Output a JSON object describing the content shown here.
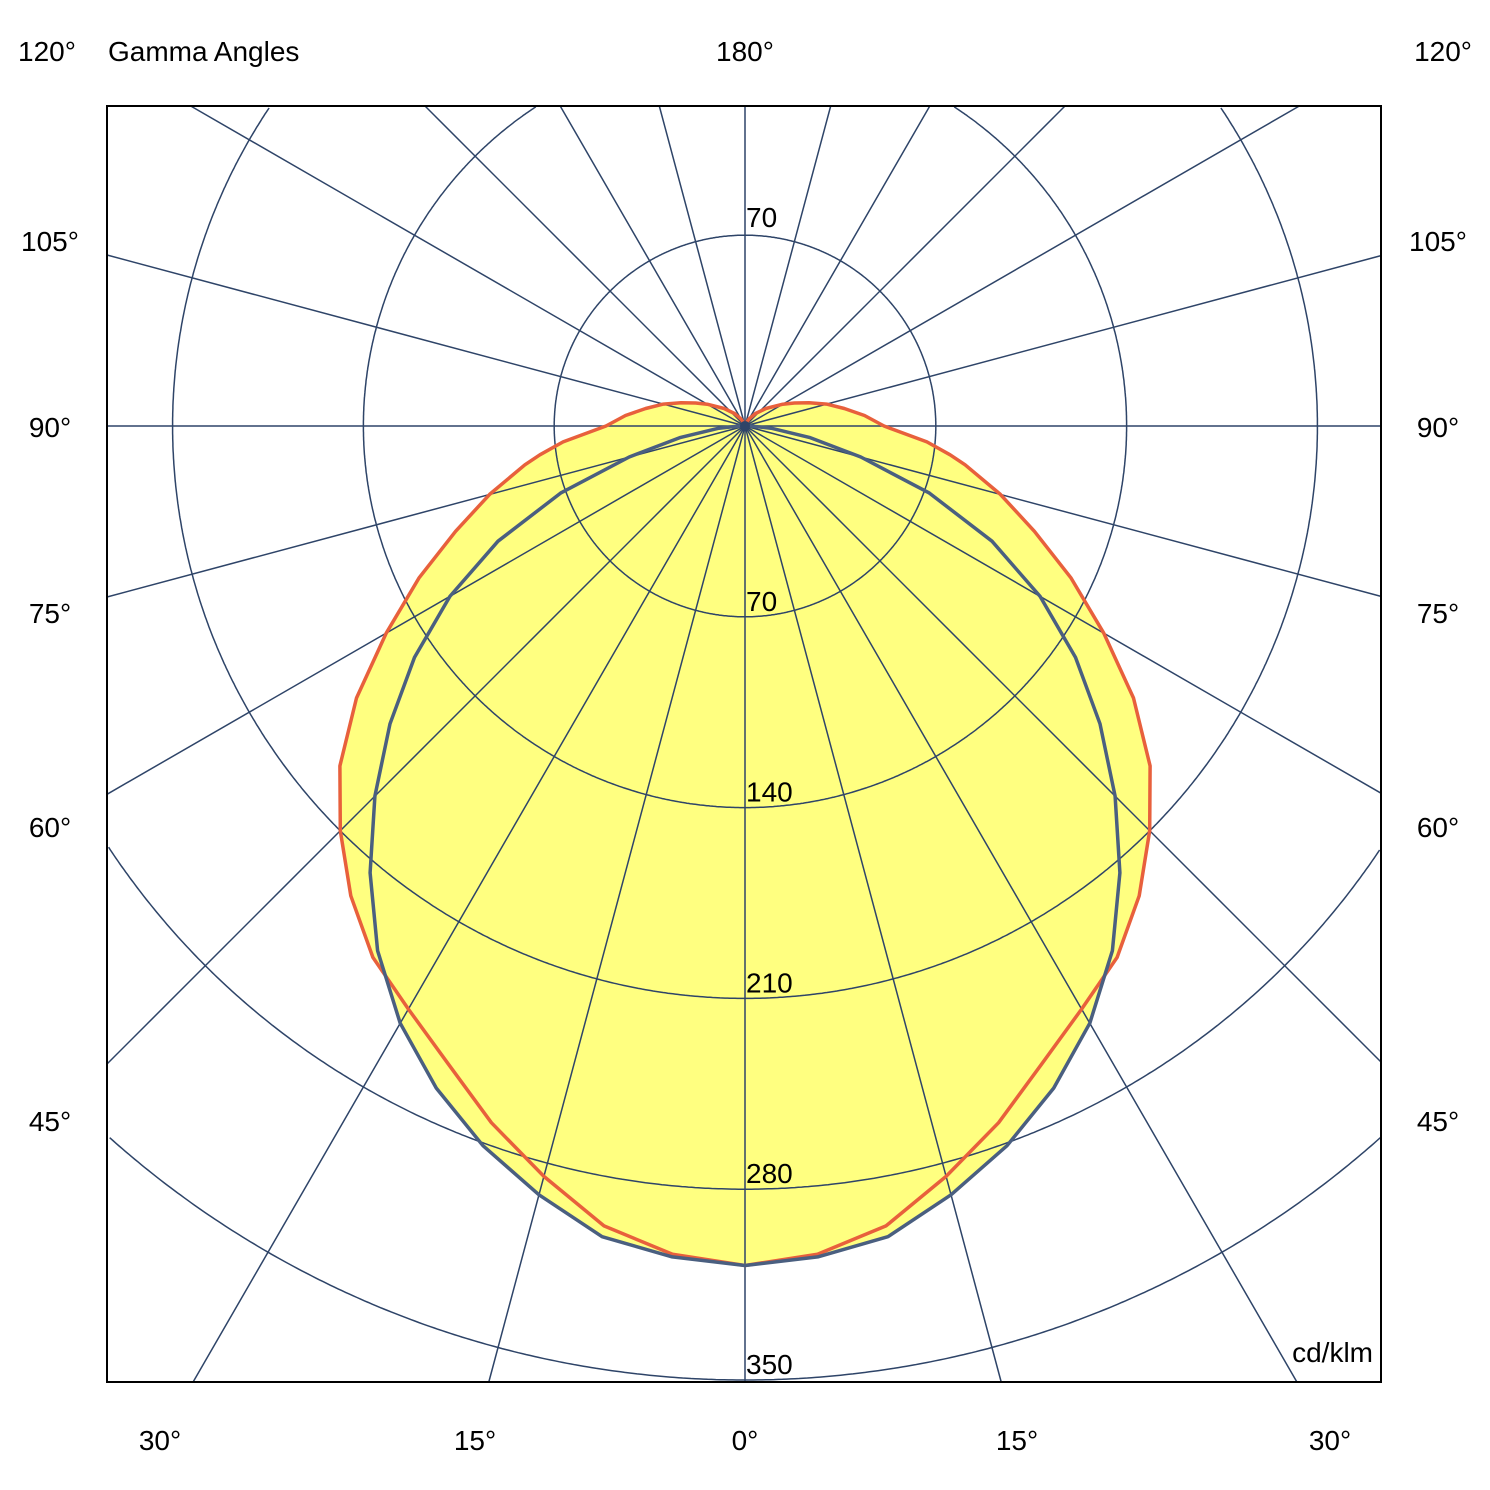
{
  "chart_data": {
    "type": "polar",
    "title": "Gamma Angles",
    "unit_label": "cd/klm",
    "radial_ticks": [
      70,
      140,
      210,
      280,
      350
    ],
    "radial_max": 350,
    "spoke_step_deg": 15,
    "grid": true,
    "top_angle_label": "180°",
    "corner_angle_label": "120°",
    "side_angle_labels": [
      "105°",
      "90°",
      "75°",
      "60°",
      "45°"
    ],
    "bottom_angle_labels": [
      "30°",
      "15°",
      "0°",
      "15°",
      "30°"
    ],
    "fill_color": "#FFFF80",
    "grid_color": "#2E4468",
    "series": [
      {
        "color": "#E8603C",
        "gamma": [
          0,
          5,
          10,
          15,
          20,
          25,
          30,
          35,
          40,
          45,
          50,
          55,
          60,
          65,
          70,
          75,
          80,
          82,
          85,
          90,
          95,
          100,
          105,
          110,
          115,
          120,
          130,
          140,
          150,
          165,
          180
        ],
        "values": [
          308,
          305,
          298,
          285,
          272,
          258,
          247,
          238,
          225,
          210,
          194,
          174,
          152,
          132,
          113,
          97,
          82,
          76,
          67,
          51,
          44,
          37,
          31,
          25,
          20,
          16,
          10,
          6,
          3,
          1,
          0
        ]
      },
      {
        "color": "#4A5F80",
        "gamma": [
          0,
          5,
          10,
          15,
          20,
          25,
          30,
          35,
          40,
          45,
          50,
          55,
          60,
          65,
          70,
          75,
          80,
          85,
          90,
          95,
          180
        ],
        "values": [
          308,
          306,
          302,
          292,
          281,
          268,
          253,
          235,
          214,
          192,
          170,
          148,
          125,
          100,
          72,
          44,
          24,
          10,
          2,
          0,
          0
        ]
      }
    ]
  }
}
